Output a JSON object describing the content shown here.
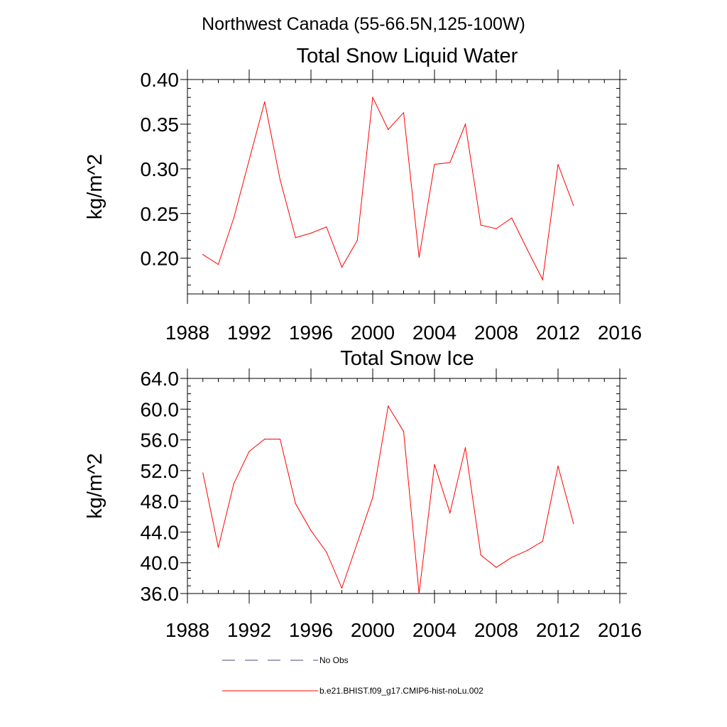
{
  "figure": {
    "suptitle": "Northwest Canada (55-66.5N,125-100W)"
  },
  "chart_data": [
    {
      "type": "line",
      "title": "Total Snow Liquid Water",
      "xlabel": "",
      "ylabel": "kg/m^2",
      "xlim": [
        1988,
        2016
      ],
      "ylim": [
        0.16,
        0.4
      ],
      "xticks": [
        1988,
        1992,
        1996,
        2000,
        2004,
        2008,
        2012,
        2016
      ],
      "xtick_labels": [
        "1988",
        "1992",
        "1996",
        "2000",
        "2004",
        "2008",
        "2012",
        "2016"
      ],
      "yticks": [
        0.2,
        0.25,
        0.3,
        0.35,
        0.4
      ],
      "ytick_labels": [
        "0.20",
        "0.25",
        "0.30",
        "0.35",
        "0.40"
      ],
      "x_minor_step": 1,
      "y_minor_step": 0.01,
      "grid": false,
      "series": [
        {
          "name": "b.e21.BHIST.f09_g17.CMIP6-hist-noLu.002",
          "color": "#ff0000",
          "x": [
            1989,
            1990,
            1991,
            1992,
            1993,
            1994,
            1995,
            1996,
            1997,
            1998,
            1999,
            2000,
            2001,
            2002,
            2003,
            2004,
            2005,
            2006,
            2007,
            2008,
            2009,
            2010,
            2011,
            2012,
            2013
          ],
          "values": [
            0.204,
            0.193,
            0.245,
            0.31,
            0.375,
            0.288,
            0.223,
            0.228,
            0.235,
            0.19,
            0.22,
            0.38,
            0.344,
            0.363,
            0.201,
            0.305,
            0.307,
            0.35,
            0.237,
            0.233,
            0.245,
            0.21,
            0.176,
            0.305,
            0.259
          ]
        }
      ]
    },
    {
      "type": "line",
      "title": "Total Snow Ice",
      "xlabel": "",
      "ylabel": "kg/m^2",
      "xlim": [
        1988,
        2016
      ],
      "ylim": [
        36.0,
        64.0
      ],
      "xticks": [
        1988,
        1992,
        1996,
        2000,
        2004,
        2008,
        2012,
        2016
      ],
      "xtick_labels": [
        "1988",
        "1992",
        "1996",
        "2000",
        "2004",
        "2008",
        "2012",
        "2016"
      ],
      "yticks": [
        36,
        40,
        44,
        48,
        52,
        56,
        60,
        64
      ],
      "ytick_labels": [
        "36.0",
        "40.0",
        "44.0",
        "48.0",
        "52.0",
        "56.0",
        "60.0",
        "64.0"
      ],
      "x_minor_step": 1,
      "y_minor_step": 1,
      "grid": false,
      "series": [
        {
          "name": "b.e21.BHIST.f09_g17.CMIP6-hist-noLu.002",
          "color": "#ff0000",
          "x": [
            1989,
            1990,
            1991,
            1992,
            1993,
            1994,
            1995,
            1996,
            1997,
            1998,
            1999,
            2000,
            2001,
            2002,
            2003,
            2004,
            2005,
            2006,
            2007,
            2008,
            2009,
            2010,
            2011,
            2012,
            2013
          ],
          "values": [
            51.7,
            42.0,
            50.3,
            54.5,
            56.1,
            56.1,
            47.7,
            44.2,
            41.4,
            36.7,
            42.6,
            48.5,
            60.4,
            57.1,
            36.0,
            52.8,
            46.5,
            55.0,
            41.0,
            39.4,
            40.7,
            41.6,
            42.8,
            52.6,
            45.1
          ]
        }
      ]
    }
  ],
  "legend": {
    "placement": "bottom",
    "entries": [
      {
        "label": "No Obs",
        "color": "#4a4a7a",
        "style": "dashed"
      },
      {
        "label": "b.e21.BHIST.f09_g17.CMIP6-hist-noLu.002",
        "color": "#ff0000",
        "style": "solid"
      }
    ]
  }
}
